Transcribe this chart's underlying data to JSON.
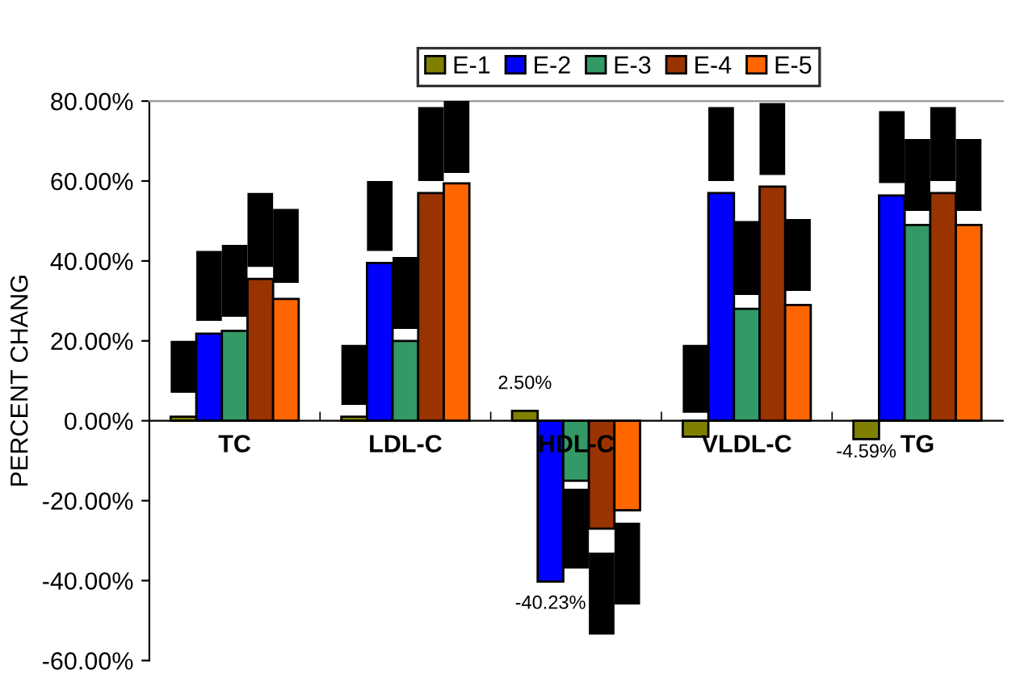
{
  "chart_data": {
    "type": "bar",
    "ylabel": "PERCENT CHANG",
    "categories": [
      "TC",
      "LDL-C",
      "HDL-C",
      "VLDL-C",
      "TG"
    ],
    "series": [
      {
        "name": "E-1",
        "color": "#808000",
        "values": [
          1,
          1,
          2.5,
          -4,
          -4.59
        ],
        "value_labels": [
          null,
          null,
          "2.50%",
          null,
          "-4.59%"
        ],
        "errors": [
          [
            7,
            20
          ],
          [
            4,
            19
          ],
          null,
          [
            2,
            19
          ],
          null
        ]
      },
      {
        "name": "E-2",
        "color": "#0000ff",
        "values": [
          21.8,
          39.5,
          -40.23,
          57,
          56.4
        ],
        "value_labels": [
          null,
          null,
          "-40.23%",
          null,
          null
        ],
        "errors": [
          [
            25,
            42.5
          ],
          [
            42.5,
            60
          ],
          null,
          [
            60,
            78.5
          ],
          [
            59.5,
            77.5
          ]
        ]
      },
      {
        "name": "E-3",
        "color": "#339966",
        "values": [
          22.5,
          20,
          -15,
          28,
          49
        ],
        "errors": [
          [
            26,
            44
          ],
          [
            23,
            41
          ],
          [
            -37,
            -17
          ],
          [
            31.5,
            50
          ],
          [
            52.5,
            70.5
          ]
        ]
      },
      {
        "name": "E-4",
        "color": "#993300",
        "values": [
          35.5,
          57,
          -27,
          58.6,
          57
        ],
        "errors": [
          [
            38.5,
            57
          ],
          [
            60,
            78.5
          ],
          [
            -53.5,
            -33
          ],
          [
            61.5,
            79.5
          ],
          [
            60,
            78.5
          ]
        ]
      },
      {
        "name": "E-5",
        "color": "#ff6600",
        "values": [
          30.5,
          59.4,
          -22.4,
          29,
          49
        ],
        "errors": [
          [
            34.5,
            53
          ],
          [
            62,
            80
          ],
          [
            -46,
            -25.5
          ],
          [
            32.5,
            50.5
          ],
          [
            52.5,
            70.5
          ]
        ]
      }
    ],
    "ylim": [
      -60,
      80
    ],
    "yticks": [
      {
        "value": -60,
        "label": "-60.00%"
      },
      {
        "value": -40,
        "label": "-40.00%"
      },
      {
        "value": -20,
        "label": "-20.00%"
      },
      {
        "value": 0,
        "label": "0.00%"
      },
      {
        "value": 20,
        "label": "20.00%"
      },
      {
        "value": 40,
        "label": "40.00%"
      },
      {
        "value": 60,
        "label": "60.00%"
      },
      {
        "value": 80,
        "label": "80.00%"
      }
    ],
    "grid": false,
    "legend": "top"
  }
}
